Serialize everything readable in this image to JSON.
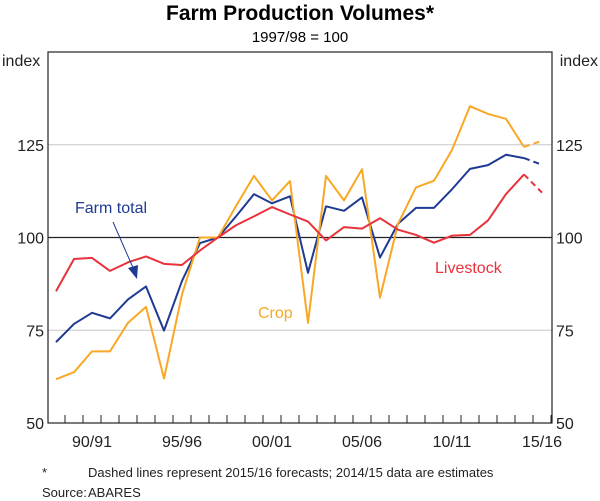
{
  "chart_data": {
    "type": "line",
    "title": "Farm Production Volumes*",
    "subtitle": "1997/98 = 100",
    "ylabel_left": "index",
    "ylabel_right": "index",
    "ylim": [
      50,
      150
    ],
    "yticks": [
      50,
      75,
      100,
      125
    ],
    "grid": true,
    "x": [
      "1988/89",
      "1989/90",
      "1990/91",
      "1991/92",
      "1992/93",
      "1993/94",
      "1994/95",
      "1995/96",
      "1996/97",
      "1997/98",
      "1998/99",
      "1999/00",
      "2000/01",
      "2001/02",
      "2002/03",
      "2003/04",
      "2004/05",
      "2005/06",
      "2006/07",
      "2007/08",
      "2008/09",
      "2009/10",
      "2010/11",
      "2011/12",
      "2012/13",
      "2013/14",
      "2014/15",
      "2015/16"
    ],
    "xtick_labels": [
      {
        "x": "1990/91",
        "label": "90/91"
      },
      {
        "x": "1995/96",
        "label": "95/96"
      },
      {
        "x": "2000/01",
        "label": "00/01"
      },
      {
        "x": "2005/06",
        "label": "05/06"
      },
      {
        "x": "2010/11",
        "label": "10/11"
      },
      {
        "x": "2015/16",
        "label": "15/16"
      }
    ],
    "series": [
      {
        "name": "Farm total",
        "color": "#1f3a93",
        "values": [
          71.8,
          76.7,
          79.7,
          78.2,
          83.3,
          86.8,
          74.9,
          88.3,
          98.5,
          100,
          105.7,
          111.7,
          109.2,
          111.1,
          90.5,
          108.4,
          107.2,
          110.8,
          94.6,
          103.7,
          108,
          108,
          113,
          118.5,
          119.5,
          122.3,
          121.4,
          119.6
        ]
      },
      {
        "name": "Crop",
        "color": "#f9a825",
        "values": [
          61.8,
          63.7,
          69.3,
          69.3,
          77,
          81.3,
          62,
          84.7,
          100,
          100,
          108.5,
          116.6,
          110,
          115.2,
          77,
          116.6,
          110,
          118.4,
          83.8,
          103.7,
          113.5,
          115.3,
          123.6,
          135.4,
          133.3,
          132,
          124.4,
          126.1
        ]
      },
      {
        "name": "Livestock",
        "color": "#e8323c",
        "values": [
          85.5,
          94.2,
          94.5,
          91,
          93.3,
          94.9,
          92.9,
          92.6,
          96.5,
          100,
          103.3,
          105.7,
          108.2,
          106.2,
          104.3,
          99.2,
          102.8,
          102.4,
          105.2,
          102.1,
          100.7,
          98.6,
          100.5,
          100.7,
          104.6,
          111.7,
          117,
          112.1
        ]
      }
    ],
    "dashed_from": "2014/15",
    "footnote": "Dashed lines represent 2015/16 forecasts; 2014/15 data are estimates",
    "footnote_marker": "*",
    "source_label": "Source:",
    "source": "ABARES"
  }
}
